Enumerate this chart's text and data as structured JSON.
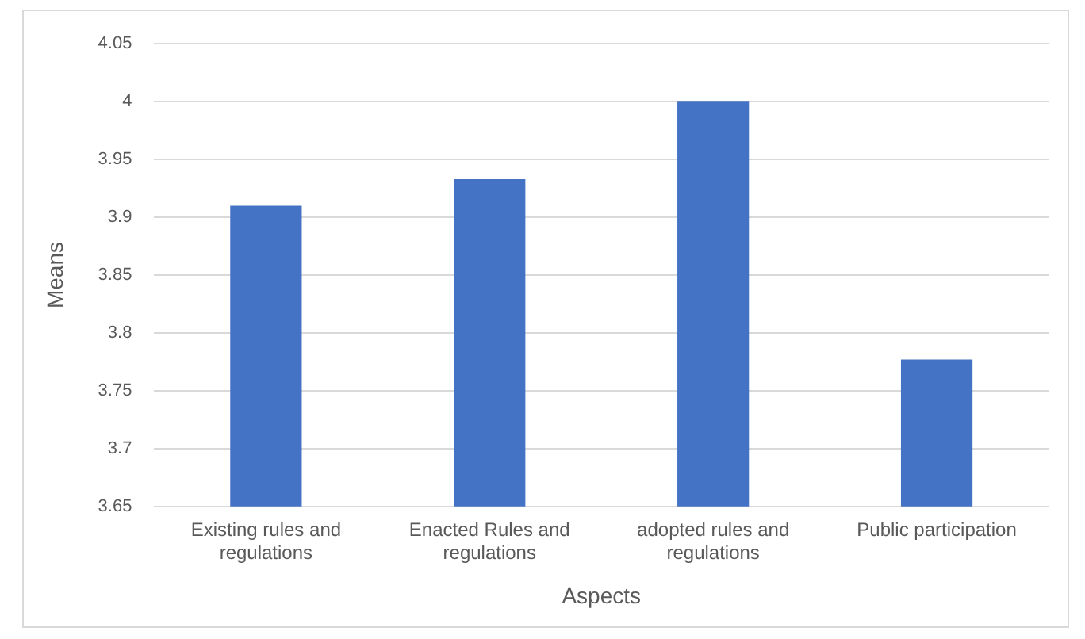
{
  "chart_data": {
    "type": "bar",
    "xlabel": "Aspects",
    "ylabel": "Means",
    "categories": [
      "Existing rules and regulations",
      "Enacted Rules and regulations",
      "adopted rules and regulations",
      "Public participation"
    ],
    "values": [
      3.91,
      3.933,
      4.0,
      3.777
    ],
    "color": "#4472c4",
    "ylim": [
      3.65,
      4.05
    ],
    "yticks": [
      3.65,
      3.7,
      3.75,
      3.8,
      3.85,
      3.9,
      3.95,
      4,
      4.05
    ],
    "grid": "y",
    "legend": false
  }
}
